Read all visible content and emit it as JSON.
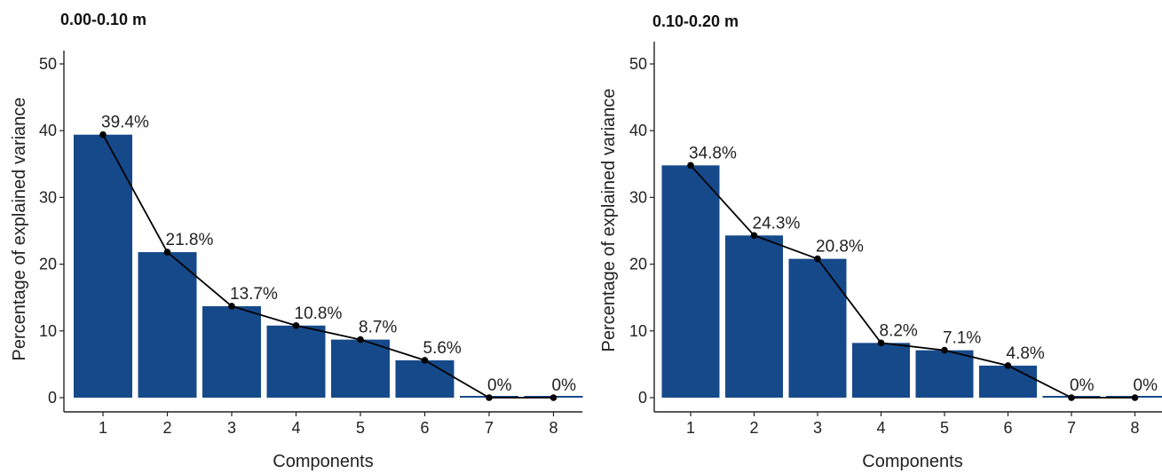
{
  "colors": {
    "bar": "#16498a",
    "line": "#000000",
    "axis": "#222222"
  },
  "chart_data": [
    {
      "type": "bar",
      "title": "0.00-0.10 m",
      "xlabel": "Components",
      "ylabel": "Percentage of explained variance",
      "categories": [
        "1",
        "2",
        "3",
        "4",
        "5",
        "6",
        "7",
        "8"
      ],
      "values": [
        39.4,
        21.8,
        13.7,
        10.8,
        8.7,
        5.6,
        0,
        0
      ],
      "data_labels": [
        "39.4%",
        "21.8%",
        "13.7%",
        "10.8%",
        "8.7%",
        "5.6%",
        "0%",
        "0%"
      ],
      "yticks": [
        "0",
        "10",
        "20",
        "30",
        "40",
        "50"
      ],
      "ylim": [
        0,
        50
      ],
      "overlay": "line-with-points",
      "grid": false
    },
    {
      "type": "bar",
      "title": "0.10-0.20 m",
      "xlabel": "Components",
      "ylabel": "Percentage of explained variance",
      "categories": [
        "1",
        "2",
        "3",
        "4",
        "5",
        "6",
        "7",
        "8"
      ],
      "values": [
        34.8,
        24.3,
        20.8,
        8.2,
        7.1,
        4.8,
        0,
        0
      ],
      "data_labels": [
        "34.8%",
        "24.3%",
        "20.8%",
        "8.2%",
        "7.1%",
        "4.8%",
        "0%",
        "0%"
      ],
      "yticks": [
        "0",
        "10",
        "20",
        "30",
        "40",
        "50"
      ],
      "ylim": [
        0,
        50
      ],
      "overlay": "line-with-points",
      "grid": false
    }
  ]
}
